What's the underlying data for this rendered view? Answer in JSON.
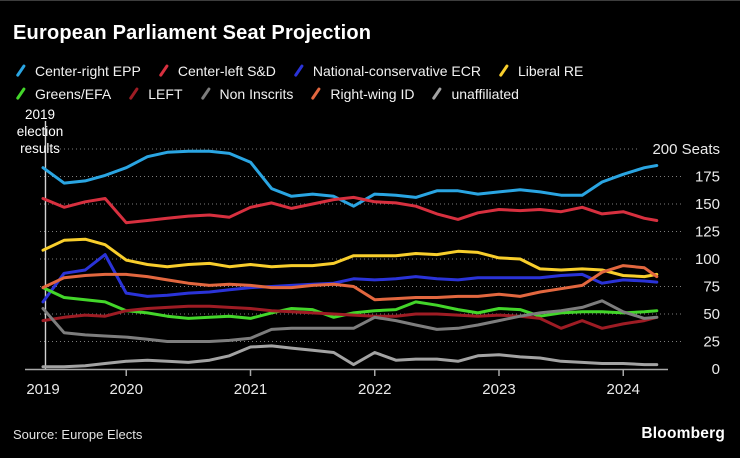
{
  "title": "European Parliament Seat Projection",
  "annotation": {
    "line1": "2019",
    "line2": "election",
    "line3": "results"
  },
  "source_text": "Source: Europe Elects",
  "brand": "Bloomberg",
  "colors": {
    "background": "#000000",
    "grid": "#8a8a8a",
    "axis": "#a8a8a8",
    "marker_line": "#d2d2d2",
    "text": "#eaeaea"
  },
  "chart_data": {
    "type": "line",
    "title": "European Parliament Seat Projection",
    "xlabel": "",
    "ylabel": "Seats",
    "ylabel_unit": "Seats",
    "ylim": [
      0,
      200
    ],
    "xlim": [
      2019.33,
      2024.4
    ],
    "grid": "horizontal-dotted",
    "legend_position": "top",
    "legend_rows": [
      4,
      5
    ],
    "y_ticks": [
      0,
      25,
      50,
      75,
      100,
      125,
      150,
      175,
      200
    ],
    "x_axis_ticks": [
      2019,
      2020,
      2021,
      2022,
      2023,
      2024
    ],
    "marker": {
      "x": 2019.35,
      "label": "2019 election results"
    },
    "x": [
      2019.33,
      2019.5,
      2019.67,
      2019.83,
      2020,
      2020.17,
      2020.33,
      2020.5,
      2020.67,
      2020.83,
      2021,
      2021.17,
      2021.33,
      2021.5,
      2021.67,
      2021.83,
      2022,
      2022.17,
      2022.33,
      2022.5,
      2022.67,
      2022.83,
      2023,
      2023.17,
      2023.33,
      2023.5,
      2023.67,
      2023.83,
      2024,
      2024.17,
      2024.27
    ],
    "series": [
      {
        "name": "Center-right EPP",
        "color": "#2aa5e2",
        "values": [
          183,
          169,
          171,
          176,
          183,
          193,
          197,
          198,
          198,
          196,
          188,
          164,
          157,
          159,
          157,
          148,
          159,
          158,
          156,
          162,
          162,
          159,
          161,
          163,
          161,
          158,
          158,
          170,
          177,
          183,
          185
        ]
      },
      {
        "name": "Center-left S&D",
        "color": "#d7303f",
        "values": [
          155,
          147,
          152,
          155,
          133,
          135,
          137,
          139,
          140,
          138,
          147,
          151,
          146,
          150,
          154,
          156,
          152,
          151,
          148,
          141,
          136,
          142,
          145,
          144,
          145,
          143,
          147,
          141,
          143,
          137,
          135
        ]
      },
      {
        "name": "National-conservative ECR",
        "color": "#2a33d8",
        "values": [
          61,
          87,
          90,
          104,
          69,
          66,
          67,
          69,
          70,
          72,
          74,
          75,
          76,
          77,
          78,
          82,
          81,
          82,
          84,
          82,
          81,
          83,
          83,
          83,
          83,
          85,
          86,
          78,
          81,
          80,
          79
        ]
      },
      {
        "name": "Liberal RE",
        "color": "#f8ce2c",
        "values": [
          108,
          117,
          118,
          113,
          99,
          95,
          93,
          95,
          96,
          93,
          95,
          93,
          94,
          94,
          96,
          103,
          103,
          103,
          105,
          104,
          107,
          106,
          101,
          100,
          91,
          90,
          91,
          90,
          85,
          84,
          86
        ]
      },
      {
        "name": "Greens/EFA",
        "color": "#43d62a",
        "values": [
          74,
          65,
          63,
          61,
          53,
          51,
          48,
          46,
          47,
          48,
          46,
          51,
          55,
          54,
          47,
          51,
          53,
          54,
          61,
          58,
          54,
          51,
          55,
          54,
          48,
          51,
          52,
          52,
          51,
          52,
          53
        ]
      },
      {
        "name": "LEFT",
        "color": "#9e1c24",
        "values": [
          44,
          47,
          49,
          48,
          53,
          55,
          56,
          57,
          57,
          56,
          55,
          53,
          52,
          51,
          50,
          49,
          48,
          48,
          50,
          50,
          49,
          48,
          49,
          48,
          46,
          37,
          44,
          37,
          41,
          44,
          47
        ]
      },
      {
        "name": "Non Inscrits",
        "color": "#7d7d7d",
        "values": [
          55,
          33,
          31,
          30,
          29,
          27,
          25,
          25,
          25,
          26,
          28,
          36,
          37,
          37,
          37,
          37,
          47,
          44,
          40,
          36,
          37,
          40,
          44,
          48,
          51,
          53,
          56,
          62,
          52,
          46,
          47
        ]
      },
      {
        "name": "Right-wing ID",
        "color": "#e2673f",
        "values": [
          74,
          83,
          85,
          86,
          86,
          84,
          81,
          78,
          76,
          77,
          76,
          74,
          74,
          76,
          77,
          75,
          63,
          64,
          65,
          65,
          66,
          66,
          68,
          66,
          70,
          73,
          76,
          88,
          94,
          92,
          84
        ]
      },
      {
        "name": "unaffiliated",
        "color": "#a3a3a3",
        "values": [
          2,
          2,
          3,
          5,
          7,
          8,
          7,
          6,
          8,
          12,
          20,
          21,
          19,
          17,
          15,
          4,
          15,
          8,
          9,
          9,
          7,
          12,
          13,
          11,
          10,
          7,
          6,
          5,
          5,
          4,
          4
        ]
      }
    ]
  }
}
